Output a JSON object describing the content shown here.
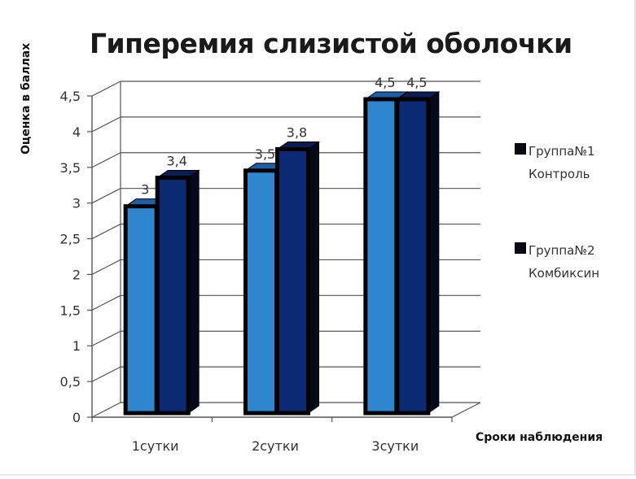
{
  "chart_data": {
    "type": "bar",
    "title": "Гиперемия слизистой оболочки",
    "xlabel": "Сроки наблюдения",
    "ylabel": "Оценка в баллах",
    "categories": [
      "1сутки",
      "2сутки",
      "3сутки"
    ],
    "series": [
      {
        "name": "Группа№1\nКонтроль",
        "values": [
          3,
          3.5,
          4.5
        ],
        "labels": [
          "3",
          "3,5",
          "4,5"
        ],
        "color": "#2e86cf"
      },
      {
        "name": "Группа№2\nКомбиксин",
        "values": [
          3.4,
          3.8,
          4.5
        ],
        "labels": [
          "3,4",
          "3,8",
          "4,5"
        ],
        "color": "#0c2a74"
      }
    ],
    "y_ticks": [
      "0",
      "0,5",
      "1",
      "1,5",
      "2",
      "2,5",
      "3",
      "3,5",
      "4",
      "4,5"
    ],
    "ylim": [
      0,
      4.5
    ],
    "grid": true,
    "legend_position": "right",
    "style": "3d-clustered-column"
  }
}
